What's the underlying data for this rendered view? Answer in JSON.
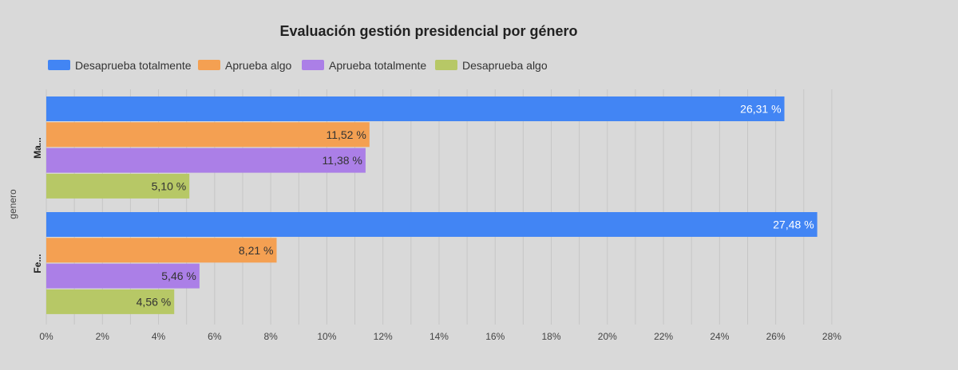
{
  "chart_data": {
    "type": "bar",
    "orientation": "horizontal",
    "title": "Evaluación gestión presidencial por género",
    "ylabel": "genero",
    "categories": [
      "Ma...",
      "Fe..."
    ],
    "series": [
      {
        "name": "Desaprueba totalmente",
        "color": "#4285f4",
        "values": [
          26.31,
          27.48
        ],
        "labels": [
          "26,31 %",
          "27,48 %"
        ]
      },
      {
        "name": "Aprueba algo",
        "color": "#f4a052",
        "values": [
          11.52,
          8.21
        ],
        "labels": [
          "11,52 %",
          "8,21 %"
        ]
      },
      {
        "name": "Aprueba totalmente",
        "color": "#ab7fe7",
        "values": [
          11.38,
          5.46
        ],
        "labels": [
          "11,38 %",
          "5,46 %"
        ]
      },
      {
        "name": "Desaprueba algo",
        "color": "#b7c866",
        "values": [
          5.1,
          4.56
        ],
        "labels": [
          "5,10 %",
          "4,56 %"
        ]
      }
    ],
    "xlim": [
      0,
      28
    ],
    "xticks": [
      "0%",
      "2%",
      "4%",
      "6%",
      "8%",
      "10%",
      "12%",
      "14%",
      "16%",
      "18%",
      "20%",
      "22%",
      "24%",
      "26%",
      "28%"
    ],
    "grid": true,
    "legend_position": "top-left"
  }
}
